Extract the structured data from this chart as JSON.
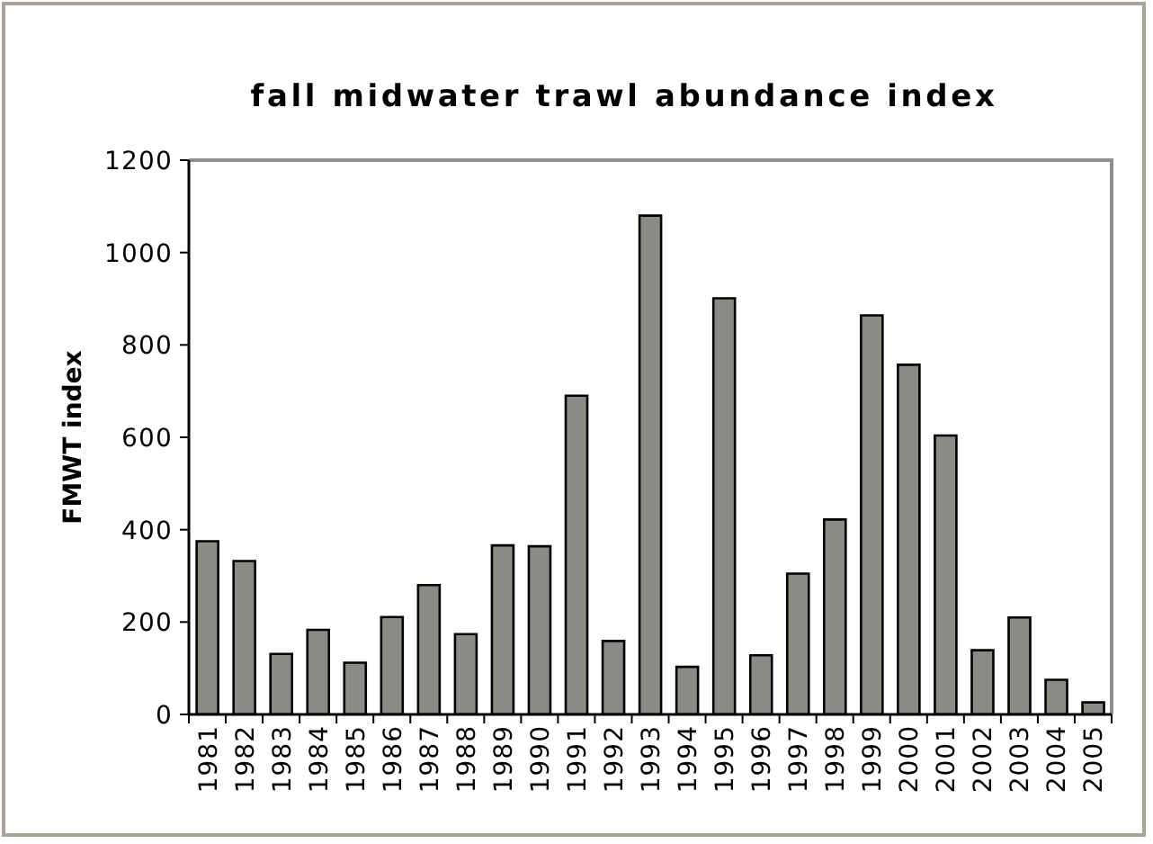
{
  "chart_data": {
    "type": "bar",
    "title": "fall midwater trawl abundance index",
    "ylabel": "FMWT index",
    "categories": [
      "1981",
      "1982",
      "1983",
      "1984",
      "1985",
      "1986",
      "1987",
      "1988",
      "1989",
      "1990",
      "1991",
      "1992",
      "1993",
      "1994",
      "1995",
      "1996",
      "1997",
      "1998",
      "1999",
      "2000",
      "2001",
      "2002",
      "2003",
      "2004",
      "2005"
    ],
    "values": [
      375,
      332,
      131,
      183,
      112,
      211,
      280,
      174,
      366,
      364,
      690,
      159,
      1080,
      103,
      901,
      128,
      305,
      422,
      864,
      757,
      604,
      139,
      210,
      75,
      26
    ],
    "color": "#8b8a84",
    "ylim": [
      0,
      1200
    ],
    "yticks": [
      0,
      200,
      400,
      600,
      800,
      1000,
      1200
    ]
  }
}
